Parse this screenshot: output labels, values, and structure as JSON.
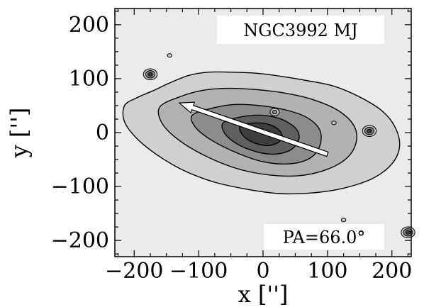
{
  "chart_data": {
    "type": "contour",
    "title": "",
    "xlabel": "x ['']",
    "ylabel": "y ['']",
    "xlim": [
      -230,
      230
    ],
    "ylim": [
      -230,
      230
    ],
    "xticks": [
      -200,
      -100,
      0,
      100,
      200
    ],
    "yticks": [
      -200,
      -100,
      0,
      100,
      200
    ],
    "xtick_labels": [
      "−200",
      "−100",
      "0",
      "100",
      "200"
    ],
    "ytick_labels": [
      "−200",
      "−100",
      "0",
      "100",
      "200"
    ],
    "grid": false,
    "annotations": {
      "name": "NGC3992 MJ",
      "pa_label": "PA=66.0°"
    },
    "position_angle_deg": 66.0,
    "pa_arrow": {
      "from": [
        100,
        -40
      ],
      "to": [
        -130,
        55
      ]
    },
    "contour_levels": [
      {
        "level": 1,
        "fill": "#d0d0d0",
        "points": [
          [
            -215,
            50
          ],
          [
            -195,
            65
          ],
          [
            -170,
            78
          ],
          [
            -145,
            92
          ],
          [
            -115,
            106
          ],
          [
            -85,
            112
          ],
          [
            -50,
            112
          ],
          [
            -10,
            110
          ],
          [
            30,
            104
          ],
          [
            70,
            96
          ],
          [
            110,
            86
          ],
          [
            150,
            66
          ],
          [
            185,
            40
          ],
          [
            205,
            10
          ],
          [
            212,
            -25
          ],
          [
            200,
            -58
          ],
          [
            170,
            -85
          ],
          [
            125,
            -103
          ],
          [
            75,
            -112
          ],
          [
            25,
            -113
          ],
          [
            -25,
            -105
          ],
          [
            -75,
            -92
          ],
          [
            -120,
            -72
          ],
          [
            -160,
            -45
          ],
          [
            -195,
            -12
          ],
          [
            -215,
            20
          ]
        ]
      },
      {
        "level": 2,
        "fill": "#b2b2b2",
        "points": [
          [
            -160,
            48
          ],
          [
            -130,
            66
          ],
          [
            -95,
            78
          ],
          [
            -55,
            82
          ],
          [
            -15,
            80
          ],
          [
            30,
            74
          ],
          [
            75,
            62
          ],
          [
            115,
            42
          ],
          [
            140,
            15
          ],
          [
            145,
            -15
          ],
          [
            132,
            -45
          ],
          [
            100,
            -68
          ],
          [
            55,
            -80
          ],
          [
            5,
            -78
          ],
          [
            -45,
            -65
          ],
          [
            -95,
            -40
          ],
          [
            -135,
            -10
          ],
          [
            -158,
            20
          ]
        ]
      },
      {
        "level": 3,
        "fill": "#8c8c8c",
        "points": [
          [
            -110,
            32
          ],
          [
            -80,
            45
          ],
          [
            -45,
            52
          ],
          [
            -5,
            50
          ],
          [
            35,
            42
          ],
          [
            68,
            28
          ],
          [
            88,
            5
          ],
          [
            88,
            -25
          ],
          [
            72,
            -48
          ],
          [
            40,
            -58
          ],
          [
            0,
            -54
          ],
          [
            -40,
            -38
          ],
          [
            -80,
            -14
          ],
          [
            -105,
            10
          ]
        ]
      },
      {
        "level": 4,
        "fill": "#5f5f5f",
        "points": [
          [
            -60,
            20
          ],
          [
            -30,
            30
          ],
          [
            0,
            32
          ],
          [
            30,
            24
          ],
          [
            52,
            6
          ],
          [
            55,
            -15
          ],
          [
            40,
            -34
          ],
          [
            12,
            -40
          ],
          [
            -20,
            -32
          ],
          [
            -48,
            -15
          ],
          [
            -62,
            4
          ]
        ]
      },
      {
        "level": 5,
        "fill": "#3e3e3e",
        "points": [
          [
            -35,
            12
          ],
          [
            -12,
            18
          ],
          [
            12,
            14
          ],
          [
            28,
            0
          ],
          [
            26,
            -16
          ],
          [
            8,
            -24
          ],
          [
            -16,
            -18
          ],
          [
            -32,
            -4
          ]
        ]
      }
    ],
    "point_sources": [
      {
        "x": -175,
        "y": 108,
        "levels": 3
      },
      {
        "x": 165,
        "y": 3,
        "levels": 3
      },
      {
        "x": 18,
        "y": 38,
        "levels": 2
      },
      {
        "x": 225,
        "y": -185,
        "levels": 3
      },
      {
        "x": -145,
        "y": 143,
        "levels": 1
      },
      {
        "x": 125,
        "y": -162,
        "levels": 1
      },
      {
        "x": 110,
        "y": 18,
        "levels": 1
      }
    ]
  }
}
